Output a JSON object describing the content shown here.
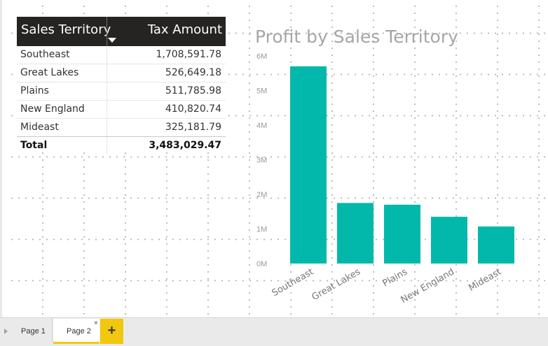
{
  "table": {
    "headers": [
      "Sales Territory",
      "Tax Amount"
    ],
    "rows": [
      [
        "Southeast",
        "1,708,591.78"
      ],
      [
        "Great Lakes",
        "526,649.18"
      ],
      [
        "Plains",
        "511,785.98"
      ],
      [
        "New England",
        "410,820.74"
      ],
      [
        "Mideast",
        "325,181.79"
      ]
    ],
    "total": [
      "Total",
      "3,483,029.47"
    ]
  },
  "chart_data": {
    "type": "bar",
    "title": "Profit by Sales Territory",
    "categories": [
      "Southeast",
      "Great Lakes",
      "Plains",
      "New England",
      "Mideast"
    ],
    "values": [
      5700000,
      1750000,
      1700000,
      1350000,
      1070000
    ],
    "ylim": [
      0,
      6000000
    ],
    "yticks": [
      "0M",
      "1M",
      "2M",
      "3M",
      "4M",
      "5M",
      "6M"
    ],
    "xlabel": "",
    "ylabel": "",
    "color": "#01b8aa"
  },
  "tabs": [
    "Page 1",
    "Page 2"
  ],
  "tab_close": "×",
  "add_page": "+",
  "colors": {
    "header_bg": "#252423",
    "bar": "#01b8aa",
    "accent": "#f2c80f"
  }
}
